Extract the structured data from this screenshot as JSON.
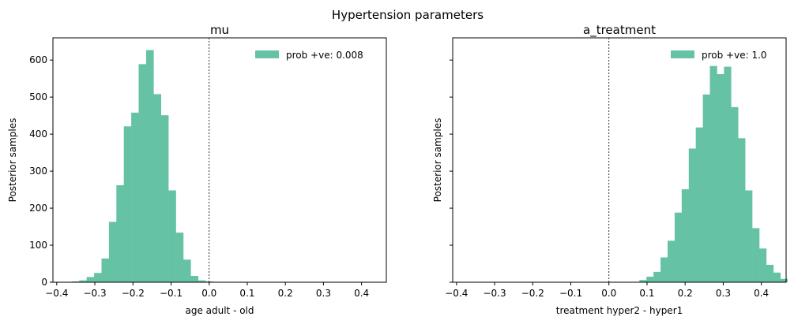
{
  "suptitle": "Hypertension parameters",
  "bar_color": "#66c2a5",
  "chart_data": [
    {
      "type": "bar",
      "title": "mu",
      "xlabel": "age adult - old",
      "ylabel": "Posterior samples",
      "legend_label": "prob +ve: 0.008",
      "legend_position": "upper-right",
      "xlim": [
        -0.41,
        0.465
      ],
      "ylim": [
        0,
        660
      ],
      "xticks": [
        -0.4,
        -0.3,
        -0.2,
        -0.1,
        0.0,
        0.1,
        0.2,
        0.3,
        0.4
      ],
      "xtick_labels": [
        "−0.4",
        "−0.3",
        "−0.2",
        "−0.1",
        "0.0",
        "0.1",
        "0.2",
        "0.3",
        "0.4"
      ],
      "yticks": [
        0,
        100,
        200,
        300,
        400,
        500,
        600
      ],
      "ytick_labels": [
        "0",
        "100",
        "200",
        "300",
        "400",
        "500",
        "600"
      ],
      "bin_start": -0.38,
      "bin_width": 0.0195,
      "values": [
        1,
        2,
        5,
        14,
        25,
        64,
        163,
        262,
        421,
        458,
        589,
        627,
        508,
        451,
        248,
        134,
        61,
        17,
        5,
        2
      ],
      "vline_x": 0.0
    },
    {
      "type": "bar",
      "title": "a_treatment",
      "xlabel": "treatment hyper2 - hyper1",
      "ylabel": "Posterior samples",
      "legend_label": "prob +ve: 1.0",
      "legend_position": "upper-right",
      "xlim": [
        -0.41,
        0.465
      ],
      "ylim": [
        0,
        660
      ],
      "xticks": [
        -0.4,
        -0.3,
        -0.2,
        -0.1,
        0.0,
        0.1,
        0.2,
        0.3,
        0.4
      ],
      "xtick_labels": [
        "−0.4",
        "−0.3",
        "−0.2",
        "−0.1",
        "0.0",
        "0.1",
        "0.2",
        "0.3",
        "0.4"
      ],
      "yticks": [
        0,
        100,
        200,
        300,
        400,
        500,
        600
      ],
      "ytick_labels": [
        "",
        "",
        "",
        "",
        "",
        "",
        ""
      ],
      "bin_start": 0.08,
      "bin_width": 0.0185,
      "values": [
        6,
        15,
        28,
        67,
        112,
        188,
        251,
        361,
        418,
        507,
        584,
        562,
        582,
        473,
        389,
        248,
        146,
        91,
        47,
        26,
        9
      ],
      "vline_x": 0.0
    }
  ]
}
